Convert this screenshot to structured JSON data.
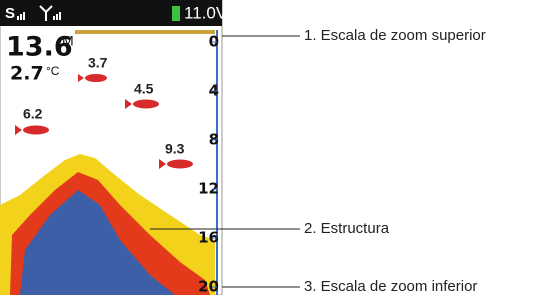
{
  "status": {
    "signal": "S",
    "voltage": "11.0V"
  },
  "readout": {
    "depth": "13.6",
    "depth_unit": "M",
    "temperature": "2.7",
    "temperature_unit": "°C"
  },
  "fish": [
    {
      "label": "3.7"
    },
    {
      "label": "4.5"
    },
    {
      "label": "6.2"
    },
    {
      "label": "9.3"
    }
  ],
  "depth_scale": [
    "0",
    "4",
    "8",
    "12",
    "16",
    "20"
  ],
  "callouts": [
    "1. Escala de zoom superior",
    "2. Estructura",
    "3. Escala de zoom inferior"
  ]
}
